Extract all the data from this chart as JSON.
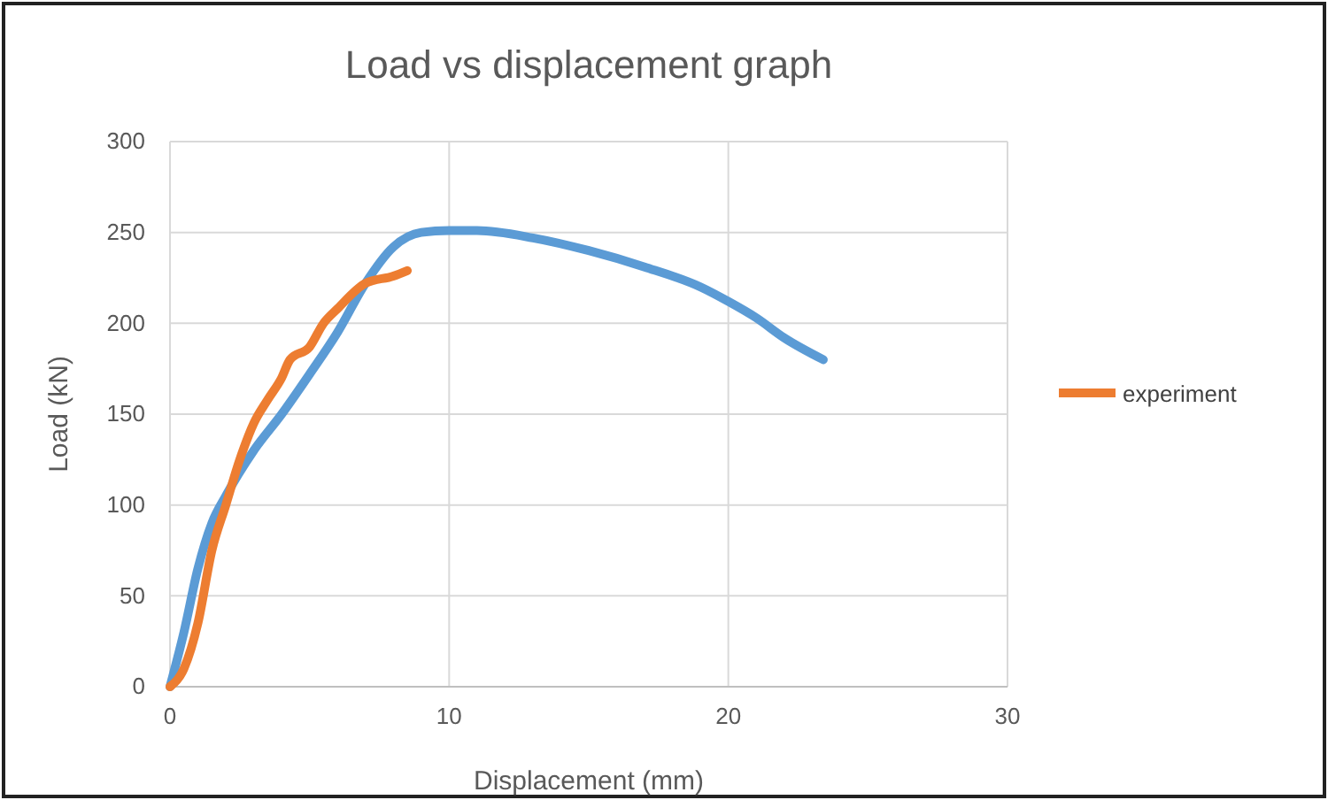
{
  "chart_data": {
    "type": "line",
    "title": "Load vs displacement graph",
    "xlabel": "Displacement (mm)",
    "ylabel": "Load (kN)",
    "xlim": [
      0,
      30
    ],
    "xticks": [
      0,
      10,
      20,
      30
    ],
    "ylim": [
      0,
      300
    ],
    "yticks": [
      0,
      50,
      100,
      150,
      200,
      250,
      300
    ],
    "grid": true,
    "legend": "right",
    "marker": "none",
    "line_style": "solid",
    "series": [
      {
        "color": "#5b9bd5",
        "x": [
          0,
          0.5,
          1,
          1.5,
          2,
          3,
          4,
          5,
          6,
          7,
          8,
          9,
          10,
          11,
          13,
          15,
          17,
          19,
          20,
          21,
          22,
          23.4
        ],
        "values": [
          0,
          30,
          65,
          90,
          105,
          130,
          150,
          172,
          195,
          222,
          242,
          250,
          251,
          251,
          247,
          240,
          231,
          220,
          212,
          203,
          192,
          180
        ]
      },
      {
        "name": "experiment",
        "color": "#ed7d31",
        "x": [
          0,
          0.5,
          1,
          1.5,
          2,
          2.5,
          3,
          3.5,
          4,
          4.3,
          5,
          5.5,
          6,
          7,
          8,
          8.5
        ],
        "values": [
          0,
          10,
          35,
          75,
          100,
          125,
          145,
          158,
          170,
          180,
          187,
          200,
          208,
          222,
          226,
          229
        ]
      }
    ]
  }
}
